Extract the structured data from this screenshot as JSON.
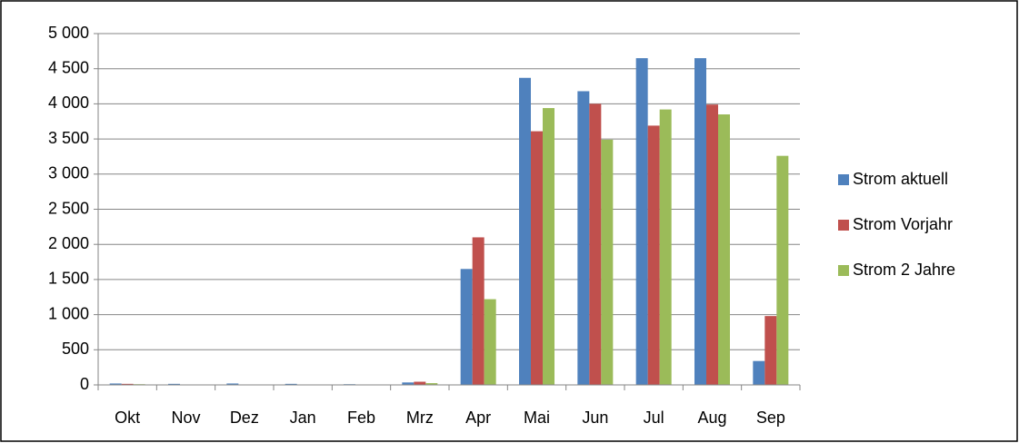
{
  "chart_data": {
    "type": "bar",
    "categories": [
      "Okt",
      "Nov",
      "Dez",
      "Jan",
      "Feb",
      "Mrz",
      "Apr",
      "Mai",
      "Jun",
      "Jul",
      "Aug",
      "Sep"
    ],
    "series": [
      {
        "name": "Strom aktuell",
        "color": "#4f81bd",
        "values": [
          20,
          15,
          20,
          15,
          10,
          35,
          1650,
          4370,
          4180,
          4650,
          4650,
          340
        ]
      },
      {
        "name": "Strom Vorjahr",
        "color": "#c0504d",
        "values": [
          15,
          5,
          5,
          5,
          5,
          45,
          2100,
          3610,
          4000,
          3690,
          3990,
          980
        ]
      },
      {
        "name": "Strom 2 Jahre",
        "color": "#9bbb59",
        "values": [
          10,
          5,
          5,
          5,
          5,
          25,
          1220,
          3940,
          3490,
          3920,
          3850,
          3260
        ]
      }
    ],
    "ylim": [
      0,
      5000
    ],
    "yticks": [
      0,
      500,
      {
        "value": 1000,
        "label": "1 000"
      },
      {
        "value": 1500,
        "label": "1 500"
      },
      {
        "value": 2000,
        "label": "2 000"
      },
      {
        "value": 2500,
        "label": "2 500"
      },
      {
        "value": 3000,
        "label": "3 000"
      },
      {
        "value": 3500,
        "label": "3 500"
      },
      {
        "value": 4000,
        "label": "4 000"
      },
      {
        "value": 4500,
        "label": "4 500"
      },
      {
        "value": 5000,
        "label": "5 000"
      }
    ],
    "grid": true,
    "legend": "right"
  }
}
